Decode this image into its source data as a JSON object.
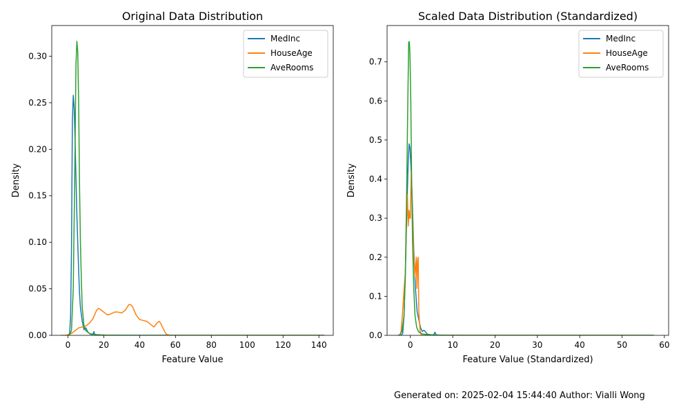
{
  "footer": {
    "generated_label": "Generated on:",
    "timestamp": "2025-02-04 15:44:40",
    "author_label": "Author:",
    "author": "Vialli Wong"
  },
  "colors": {
    "MedInc": "#1f77b4",
    "HouseAge": "#ff7f0e",
    "AveRooms": "#2ca02c"
  },
  "chart_data": [
    {
      "type": "line",
      "title": "Original Data Distribution",
      "xlabel": "Feature Value",
      "ylabel": "Density",
      "xlim": [
        -9,
        148
      ],
      "ylim": [
        0,
        0.333
      ],
      "xticks": [
        0,
        20,
        40,
        60,
        80,
        100,
        120,
        140
      ],
      "yticks": [
        0.0,
        0.05,
        0.1,
        0.15,
        0.2,
        0.25,
        0.3
      ],
      "ytick_decimals": 2,
      "legend_position": "top-right",
      "series": [
        {
          "name": "MedInc",
          "points": [
            [
              0.5,
              0
            ],
            [
              1,
              0.003
            ],
            [
              1.5,
              0.02
            ],
            [
              2,
              0.09
            ],
            [
              2.5,
              0.23
            ],
            [
              3,
              0.258
            ],
            [
              3.5,
              0.245
            ],
            [
              4,
              0.21
            ],
            [
              4.5,
              0.17
            ],
            [
              5,
              0.13
            ],
            [
              5.5,
              0.1
            ],
            [
              6,
              0.07
            ],
            [
              6.5,
              0.045
            ],
            [
              7,
              0.03
            ],
            [
              8,
              0.015
            ],
            [
              9,
              0.006
            ],
            [
              10,
              0.008
            ],
            [
              11,
              0.004
            ],
            [
              12,
              0.002
            ],
            [
              13,
              0.001
            ],
            [
              14,
              0.001
            ],
            [
              14.5,
              0.004
            ],
            [
              15,
              0.001
            ],
            [
              16,
              0.0002
            ],
            [
              18,
              0
            ],
            [
              143,
              0
            ]
          ]
        },
        {
          "name": "HouseAge",
          "points": [
            [
              -4,
              0
            ],
            [
              -2,
              0
            ],
            [
              0,
              0.0005
            ],
            [
              2,
              0.002
            ],
            [
              4,
              0.005
            ],
            [
              6,
              0.008
            ],
            [
              8,
              0.009
            ],
            [
              10,
              0.01
            ],
            [
              12,
              0.013
            ],
            [
              14,
              0.018
            ],
            [
              16,
              0.027
            ],
            [
              17,
              0.029
            ],
            [
              18,
              0.028
            ],
            [
              20,
              0.025
            ],
            [
              22,
              0.022
            ],
            [
              24,
              0.023
            ],
            [
              26,
              0.025
            ],
            [
              28,
              0.025
            ],
            [
              30,
              0.024
            ],
            [
              32,
              0.027
            ],
            [
              34,
              0.033
            ],
            [
              35,
              0.033
            ],
            [
              36,
              0.031
            ],
            [
              38,
              0.022
            ],
            [
              40,
              0.017
            ],
            [
              42,
              0.016
            ],
            [
              44,
              0.015
            ],
            [
              46,
              0.012
            ],
            [
              48,
              0.009
            ],
            [
              50,
              0.014
            ],
            [
              51,
              0.015
            ],
            [
              52,
              0.012
            ],
            [
              54,
              0.004
            ],
            [
              55,
              0.001
            ],
            [
              57,
              0
            ],
            [
              143,
              0
            ]
          ]
        },
        {
          "name": "AveRooms",
          "points": [
            [
              0,
              0
            ],
            [
              1,
              0.001
            ],
            [
              2,
              0.005
            ],
            [
              3,
              0.05
            ],
            [
              4,
              0.2
            ],
            [
              4.5,
              0.29
            ],
            [
              5,
              0.316
            ],
            [
              5.5,
              0.305
            ],
            [
              6,
              0.25
            ],
            [
              6.5,
              0.16
            ],
            [
              7,
              0.1
            ],
            [
              7.5,
              0.06
            ],
            [
              8,
              0.03
            ],
            [
              9,
              0.01
            ],
            [
              10,
              0.005
            ],
            [
              12,
              0.002
            ],
            [
              15,
              0.0008
            ],
            [
              20,
              0.0003
            ],
            [
              30,
              0.0001
            ],
            [
              40,
              0
            ],
            [
              143,
              0
            ]
          ]
        }
      ]
    },
    {
      "type": "line",
      "title": "Scaled Data Distribution (Standardized)",
      "xlabel": "Feature Value (Standardized)",
      "ylabel": "Density",
      "xlim": [
        -5.5,
        61
      ],
      "ylim": [
        0,
        0.793
      ],
      "xticks": [
        0,
        10,
        20,
        30,
        40,
        50,
        60
      ],
      "yticks": [
        0.0,
        0.1,
        0.2,
        0.3,
        0.4,
        0.5,
        0.6,
        0.7
      ],
      "ytick_decimals": 1,
      "legend_position": "top-right",
      "series": [
        {
          "name": "MedInc",
          "points": [
            [
              -2.2,
              0
            ],
            [
              -1.8,
              0.005
            ],
            [
              -1.5,
              0.05
            ],
            [
              -1.2,
              0.15
            ],
            [
              -0.8,
              0.33
            ],
            [
              -0.5,
              0.45
            ],
            [
              -0.3,
              0.49
            ],
            [
              -0.1,
              0.48
            ],
            [
              0.2,
              0.42
            ],
            [
              0.5,
              0.33
            ],
            [
              0.8,
              0.22
            ],
            [
              1.2,
              0.12
            ],
            [
              1.6,
              0.06
            ],
            [
              2,
              0.04
            ],
            [
              2.4,
              0.02
            ],
            [
              2.8,
              0.01
            ],
            [
              3.2,
              0.013
            ],
            [
              3.5,
              0.01
            ],
            [
              4,
              0.003
            ],
            [
              4.5,
              0.002
            ],
            [
              5,
              0.001
            ],
            [
              5.5,
              0.001
            ],
            [
              5.8,
              0.008
            ],
            [
              6.1,
              0.001
            ],
            [
              7,
              0
            ],
            [
              57.5,
              0
            ]
          ]
        },
        {
          "name": "HouseAge",
          "points": [
            [
              -2.5,
              0
            ],
            [
              -2.2,
              0.01
            ],
            [
              -1.9,
              0.05
            ],
            [
              -1.6,
              0.1
            ],
            [
              -1.2,
              0.16
            ],
            [
              -0.9,
              0.31
            ],
            [
              -0.7,
              0.36
            ],
            [
              -0.5,
              0.28
            ],
            [
              -0.3,
              0.32
            ],
            [
              -0.15,
              0.3
            ],
            [
              0,
              0.3
            ],
            [
              0.2,
              0.42
            ],
            [
              0.35,
              0.37
            ],
            [
              0.5,
              0.3
            ],
            [
              0.8,
              0.2
            ],
            [
              1.1,
              0.15
            ],
            [
              1.4,
              0.2
            ],
            [
              1.55,
              0.12
            ],
            [
              1.7,
              0.19
            ],
            [
              1.85,
              0.2
            ],
            [
              2,
              0.06
            ],
            [
              2.3,
              0.01
            ],
            [
              2.6,
              0
            ],
            [
              57.5,
              0
            ]
          ]
        },
        {
          "name": "AveRooms",
          "points": [
            [
              -3,
              0
            ],
            [
              -2.5,
              0.001
            ],
            [
              -2,
              0.01
            ],
            [
              -1.5,
              0.05
            ],
            [
              -1.2,
              0.15
            ],
            [
              -0.9,
              0.35
            ],
            [
              -0.6,
              0.6
            ],
            [
              -0.4,
              0.75
            ],
            [
              -0.25,
              0.752
            ],
            [
              -0.1,
              0.72
            ],
            [
              0.1,
              0.6
            ],
            [
              0.3,
              0.4
            ],
            [
              0.5,
              0.25
            ],
            [
              0.8,
              0.12
            ],
            [
              1.1,
              0.05
            ],
            [
              1.5,
              0.02
            ],
            [
              2,
              0.008
            ],
            [
              3,
              0.003
            ],
            [
              5,
              0.001
            ],
            [
              10,
              0.0002
            ],
            [
              13,
              0.0001
            ],
            [
              20,
              0
            ],
            [
              57.5,
              0
            ]
          ]
        }
      ]
    }
  ]
}
